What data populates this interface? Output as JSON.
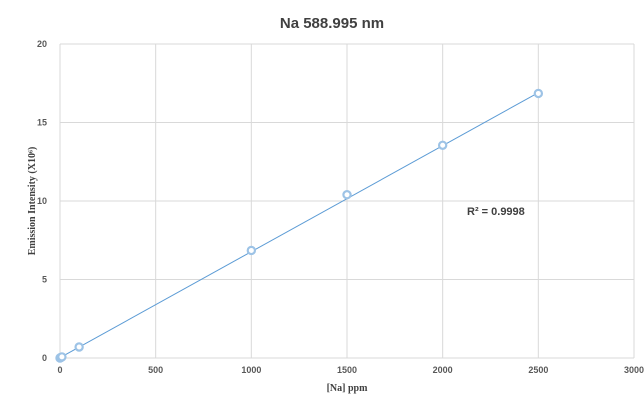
{
  "chart_data": {
    "type": "scatter",
    "title": "Na 588.995 nm",
    "xlabel": "[Na] ppm",
    "ylabel": "Emission Intensity  (X10⁶)",
    "xlim": [
      0,
      3000
    ],
    "ylim": [
      0,
      20
    ],
    "xticks": [
      0,
      500,
      1000,
      1500,
      2000,
      2500,
      3000
    ],
    "yticks": [
      0,
      5,
      10,
      15,
      20
    ],
    "xtick_labels": [
      "0",
      "500",
      "1000",
      "1500",
      "2000",
      "2500",
      "3000"
    ],
    "ytick_labels": [
      "0",
      "5",
      "10",
      "15",
      "20"
    ],
    "grid": true,
    "series": [
      {
        "points": [
          {
            "x": 0,
            "y": 0.0
          },
          {
            "x": 5,
            "y": 0.04
          },
          {
            "x": 10,
            "y": 0.07
          },
          {
            "x": 100,
            "y": 0.7
          },
          {
            "x": 1000,
            "y": 6.85
          },
          {
            "x": 1500,
            "y": 10.4
          },
          {
            "x": 2000,
            "y": 13.55
          },
          {
            "x": 2500,
            "y": 16.85
          }
        ],
        "trendline": {
          "x0": 0,
          "y0": 0.02,
          "x1": 2500,
          "y1": 16.9
        }
      }
    ],
    "annotation": "R² = 0.9998",
    "colors": {
      "marker": "#9DC3E6",
      "trendline": "#5B9BD5",
      "grid": "#D9D9D9",
      "text": "#595959"
    }
  }
}
